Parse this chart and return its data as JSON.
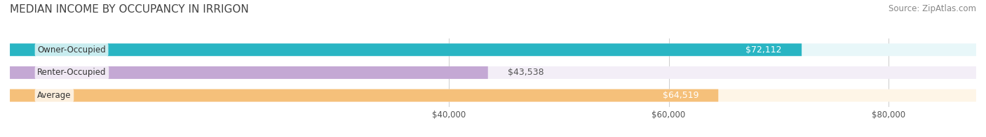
{
  "title": "MEDIAN INCOME BY OCCUPANCY IN IRRIGON",
  "source": "Source: ZipAtlas.com",
  "categories": [
    "Owner-Occupied",
    "Renter-Occupied",
    "Average"
  ],
  "values": [
    72112,
    43538,
    64519
  ],
  "labels": [
    "$72,112",
    "$43,538",
    "$64,519"
  ],
  "bar_colors": [
    "#29b5c3",
    "#c4a8d4",
    "#f5c07a"
  ],
  "bar_bg_colors": [
    "#e8f7f9",
    "#f3eef7",
    "#fef5e7"
  ],
  "label_colors": [
    "#ffffff",
    "#555555",
    "#ffffff"
  ],
  "xlim": [
    0,
    88000
  ],
  "xticks": [
    40000,
    60000,
    80000
  ],
  "xticklabels": [
    "$40,000",
    "$60,000",
    "$80,000"
  ],
  "title_fontsize": 11,
  "source_fontsize": 8.5,
  "bar_label_fontsize": 9,
  "category_fontsize": 8.5,
  "bar_height": 0.55,
  "background_color": "#ffffff",
  "value_threshold": 55000
}
